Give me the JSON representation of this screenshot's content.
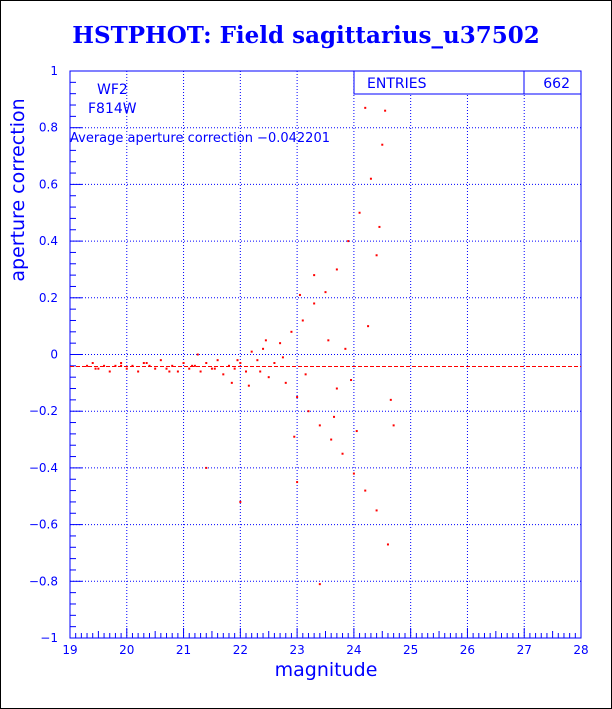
{
  "colors": {
    "axis": "#0000ff",
    "points": "#ff0000",
    "average_line": "#ff0000",
    "text": "#0000ff"
  },
  "chart_data": {
    "type": "scatter",
    "title": "HSTPHOT: Field sagittarius_u37502",
    "xlabel": "magnitude",
    "ylabel": "aperture correction",
    "xlim": [
      19,
      28
    ],
    "ylim": [
      -1,
      1
    ],
    "x_ticks": [
      "19",
      "20",
      "21",
      "22",
      "23",
      "24",
      "25",
      "26",
      "27",
      "28"
    ],
    "y_ticks": [
      "1",
      "0.8",
      "0.6",
      "0.4",
      "0.2",
      "0",
      "−0.2",
      "−0.4",
      "−0.6",
      "−0.8",
      "−1"
    ],
    "grid": true,
    "annotations": {
      "chip": "WF2",
      "filter": "F814W",
      "average_text": "Average aperture correction −0.042201"
    },
    "average_value": -0.042201,
    "stats_box": {
      "label": "ENTRIES",
      "value": "662"
    },
    "points": [
      [
        19.3,
        -0.04
      ],
      [
        19.4,
        -0.03
      ],
      [
        19.5,
        -0.05
      ],
      [
        19.6,
        -0.04
      ],
      [
        19.7,
        -0.06
      ],
      [
        19.8,
        -0.04
      ],
      [
        19.9,
        -0.03
      ],
      [
        20.0,
        -0.05
      ],
      [
        20.1,
        -0.04
      ],
      [
        20.2,
        -0.06
      ],
      [
        20.3,
        -0.03
      ],
      [
        20.4,
        -0.04
      ],
      [
        20.5,
        -0.05
      ],
      [
        20.6,
        -0.02
      ],
      [
        20.7,
        -0.05
      ],
      [
        20.8,
        -0.04
      ],
      [
        20.9,
        -0.06
      ],
      [
        21.0,
        -0.03
      ],
      [
        21.1,
        -0.05
      ],
      [
        21.2,
        -0.04
      ],
      [
        21.3,
        -0.06
      ],
      [
        21.4,
        -0.03
      ],
      [
        21.5,
        -0.05
      ],
      [
        21.6,
        -0.02
      ],
      [
        21.7,
        -0.07
      ],
      [
        21.8,
        -0.04
      ],
      [
        21.9,
        -0.05
      ],
      [
        22.0,
        -0.03
      ],
      [
        22.1,
        -0.06
      ],
      [
        22.2,
        0.01
      ],
      [
        22.3,
        -0.02
      ],
      [
        22.4,
        0.02
      ],
      [
        22.5,
        -0.08
      ],
      [
        22.6,
        -0.03
      ],
      [
        22.7,
        0.04
      ],
      [
        22.8,
        -0.1
      ],
      [
        22.9,
        0.08
      ],
      [
        23.0,
        -0.15
      ],
      [
        23.1,
        0.12
      ],
      [
        23.2,
        -0.2
      ],
      [
        23.3,
        0.18
      ],
      [
        23.4,
        -0.25
      ],
      [
        23.5,
        0.22
      ],
      [
        23.6,
        -0.3
      ],
      [
        23.7,
        0.3
      ],
      [
        23.8,
        -0.35
      ],
      [
        23.9,
        0.4
      ],
      [
        24.0,
        -0.42
      ],
      [
        24.1,
        0.5
      ],
      [
        24.2,
        -0.48
      ],
      [
        24.3,
        0.62
      ],
      [
        24.4,
        -0.55
      ],
      [
        24.5,
        0.74
      ],
      [
        24.55,
        0.86
      ],
      [
        24.2,
        0.87
      ],
      [
        24.6,
        -0.67
      ],
      [
        23.4,
        -0.81
      ],
      [
        21.4,
        -0.4
      ],
      [
        22.0,
        -0.52
      ],
      [
        23.0,
        -0.45
      ],
      [
        23.3,
        0.28
      ],
      [
        23.7,
        -0.12
      ],
      [
        24.4,
        0.35
      ],
      [
        24.7,
        -0.25
      ],
      [
        19.45,
        -0.05
      ],
      [
        19.9,
        -0.04
      ],
      [
        20.35,
        -0.03
      ],
      [
        20.75,
        -0.06
      ],
      [
        21.15,
        -0.04
      ],
      [
        21.55,
        -0.05
      ],
      [
        21.95,
        -0.02
      ],
      [
        22.35,
        -0.06
      ],
      [
        22.75,
        -0.01
      ],
      [
        23.15,
        -0.07
      ],
      [
        23.55,
        0.05
      ],
      [
        23.95,
        -0.09
      ],
      [
        24.25,
        0.1
      ],
      [
        24.65,
        -0.16
      ],
      [
        22.45,
        0.05
      ],
      [
        22.15,
        -0.11
      ],
      [
        23.05,
        0.21
      ],
      [
        23.85,
        0.02
      ],
      [
        24.05,
        -0.27
      ],
      [
        24.45,
        0.45
      ],
      [
        23.65,
        -0.22
      ],
      [
        22.95,
        -0.29
      ],
      [
        21.85,
        -0.1
      ],
      [
        21.25,
        0.0
      ]
    ]
  }
}
